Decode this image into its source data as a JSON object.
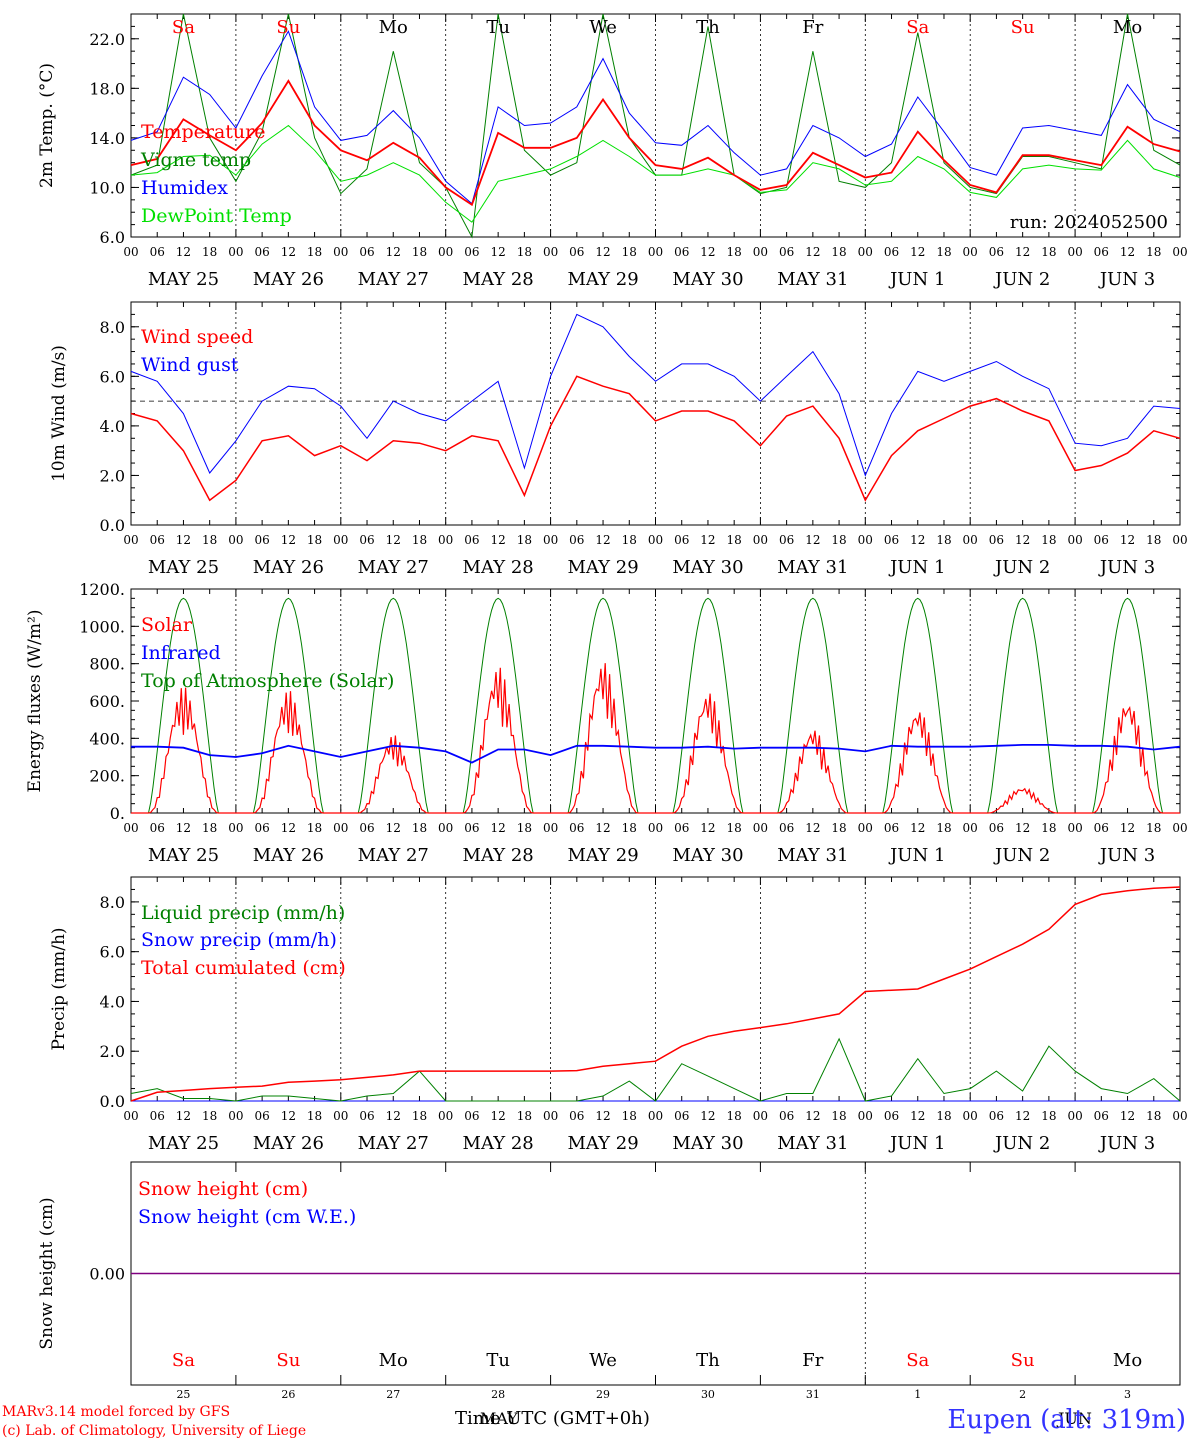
{
  "colors": {
    "red": "#ff0000",
    "blue": "#0000ff",
    "green": "#008000",
    "lightgreen": "#00e000",
    "black": "#000000",
    "purple": "#800080",
    "title_blue": "#3333ff"
  },
  "x_ticks": [
    "00",
    "06",
    "12",
    "18",
    "00",
    "06",
    "12",
    "18",
    "00",
    "06",
    "12",
    "18",
    "00",
    "06",
    "12",
    "18",
    "00",
    "06",
    "12",
    "18",
    "00",
    "06",
    "12",
    "18",
    "00",
    "06",
    "12",
    "18",
    "00",
    "06",
    "12",
    "18",
    "00",
    "06",
    "12",
    "18",
    "00",
    "06",
    "12",
    "18",
    "00"
  ],
  "date_labels": [
    "MAY 25",
    "MAY 26",
    "MAY 27",
    "MAY 28",
    "MAY 29",
    "MAY 30",
    "MAY 31",
    "JUN  1",
    "JUN  2",
    "JUN  3"
  ],
  "weekdays": [
    "Sa",
    "Su",
    "Mo",
    "Tu",
    "We",
    "Th",
    "Fr",
    "Sa",
    "Su",
    "Mo"
  ],
  "weekday_colors": [
    "red",
    "red",
    "black",
    "black",
    "black",
    "black",
    "black",
    "red",
    "red",
    "black"
  ],
  "day_numbers": [
    "25",
    "26",
    "27",
    "28",
    "29",
    "30",
    "31",
    "1",
    "2",
    "3"
  ],
  "bottom_axis_label": "Time UTC (GMT+0h)",
  "bottom_month_may": "MAY",
  "bottom_month_jun": "JUN",
  "footer": {
    "line1": "MARv3.14 model forced by GFS",
    "line2": "(c) Lab. of Climatology, University of Liege",
    "station": "Eupen (alt: 319m)"
  },
  "chart_data": [
    {
      "type": "line",
      "ylabel": "2m Temp. (°C)",
      "ylim": [
        6,
        24
      ],
      "ytick_labels": [
        "6.0",
        "10.0",
        "14.0",
        "18.0",
        "22.0"
      ],
      "run_label": "run: 2024052500",
      "x_unit": "days since MAY 25 00UTC",
      "series": [
        {
          "name": "Temperature",
          "color": "red",
          "x": [
            0,
            0.25,
            0.5,
            0.75,
            1,
            1.25,
            1.5,
            1.75,
            2,
            2.25,
            2.5,
            2.75,
            3,
            3.25,
            3.5,
            3.75,
            4,
            4.25,
            4.5,
            4.75,
            5,
            5.25,
            5.5,
            5.75,
            6,
            6.25,
            6.5,
            6.75,
            7,
            7.25,
            7.5,
            7.75,
            8,
            8.25,
            8.5,
            8.75,
            9,
            9.25,
            9.5,
            9.75,
            10
          ],
          "values": [
            11.8,
            12.3,
            15.5,
            14.2,
            13.0,
            15.2,
            18.6,
            15.0,
            13.0,
            12.2,
            13.6,
            12.4,
            10.0,
            8.6,
            14.4,
            13.2,
            13.2,
            14.0,
            17.1,
            14.0,
            11.8,
            11.5,
            12.4,
            11.0,
            9.8,
            10.2,
            12.8,
            11.8,
            10.8,
            11.2,
            14.5,
            12.2,
            10.2,
            9.6,
            12.6,
            12.6,
            12.2,
            11.8,
            14.9,
            13.5,
            12.9
          ]
        },
        {
          "name": "Vigne temp",
          "color": "green",
          "x": [
            0,
            0.25,
            0.5,
            0.75,
            1,
            1.25,
            1.5,
            1.75,
            2,
            2.25,
            2.5,
            2.75,
            3,
            3.25,
            3.5,
            3.75,
            4,
            4.25,
            4.5,
            4.75,
            5,
            5.25,
            5.5,
            5.75,
            6,
            6.25,
            6.5,
            6.75,
            7,
            7.25,
            7.5,
            7.75,
            8,
            8.25,
            8.5,
            8.75,
            9,
            9.25,
            9.5,
            9.75,
            10
          ],
          "values": [
            11.0,
            11.8,
            24.0,
            14.0,
            10.5,
            14.5,
            24.0,
            14.0,
            9.5,
            11.5,
            21.0,
            12.0,
            10.0,
            6.0,
            24.0,
            13.0,
            11.0,
            12.0,
            24.0,
            14.0,
            11.0,
            11.0,
            23.0,
            11.0,
            9.5,
            10.0,
            21.0,
            10.5,
            10.0,
            12.0,
            22.5,
            12.0,
            10.0,
            9.5,
            12.5,
            12.5,
            12.0,
            11.5,
            24.0,
            13.0,
            11.8
          ]
        },
        {
          "name": "Humidex",
          "color": "blue",
          "x": [
            0,
            0.25,
            0.5,
            0.75,
            1,
            1.25,
            1.5,
            1.75,
            2,
            2.25,
            2.5,
            2.75,
            3,
            3.25,
            3.5,
            3.75,
            4,
            4.25,
            4.5,
            4.75,
            5,
            5.25,
            5.5,
            5.75,
            6,
            6.25,
            6.5,
            6.75,
            7,
            7.25,
            7.5,
            7.75,
            8,
            8.25,
            8.5,
            8.75,
            9,
            9.25,
            9.5,
            9.75,
            10
          ],
          "values": [
            13.8,
            14.5,
            18.9,
            17.5,
            14.8,
            19.0,
            22.6,
            16.5,
            13.8,
            14.2,
            16.2,
            14.0,
            10.5,
            8.7,
            16.5,
            15.0,
            15.2,
            16.5,
            20.4,
            16.0,
            13.6,
            13.4,
            15.0,
            12.8,
            11.0,
            11.5,
            15.0,
            14.0,
            12.5,
            13.5,
            17.3,
            14.5,
            11.6,
            11.0,
            14.8,
            15.0,
            14.6,
            14.2,
            18.3,
            15.5,
            14.5
          ]
        },
        {
          "name": "DewPoint Temp",
          "color": "lightgreen",
          "x": [
            0,
            0.25,
            0.5,
            0.75,
            1,
            1.25,
            1.5,
            1.75,
            2,
            2.25,
            2.5,
            2.75,
            3,
            3.25,
            3.5,
            3.75,
            4,
            4.25,
            4.5,
            4.75,
            5,
            5.25,
            5.5,
            5.75,
            6,
            6.25,
            6.5,
            6.75,
            7,
            7.25,
            7.5,
            7.75,
            8,
            8.25,
            8.5,
            8.75,
            9,
            9.25,
            9.5,
            9.75,
            10
          ],
          "values": [
            11.0,
            11.2,
            12.5,
            12.6,
            11.0,
            13.5,
            15.0,
            13.0,
            10.5,
            11.0,
            12.0,
            11.0,
            8.8,
            7.2,
            10.5,
            11.0,
            11.5,
            12.5,
            13.8,
            12.5,
            11.0,
            11.0,
            11.5,
            11.0,
            9.6,
            9.8,
            12.0,
            11.5,
            10.2,
            10.5,
            12.5,
            11.5,
            9.6,
            9.2,
            11.5,
            11.8,
            11.5,
            11.4,
            13.8,
            11.5,
            10.8
          ]
        }
      ]
    },
    {
      "type": "line",
      "ylabel": "10m Wind (m/s)",
      "ylim": [
        0,
        9
      ],
      "ytick_labels": [
        "0.0",
        "2.0",
        "4.0",
        "6.0",
        "8.0"
      ],
      "threshold": 5.0,
      "series": [
        {
          "name": "Wind speed",
          "color": "red",
          "x": [
            0,
            0.25,
            0.5,
            0.75,
            1,
            1.25,
            1.5,
            1.75,
            2,
            2.25,
            2.5,
            2.75,
            3,
            3.25,
            3.5,
            3.75,
            4,
            4.25,
            4.5,
            4.75,
            5,
            5.25,
            5.5,
            5.75,
            6,
            6.25,
            6.5,
            6.75,
            7,
            7.25,
            7.5,
            7.75,
            8,
            8.25,
            8.5,
            8.75,
            9,
            9.25,
            9.5,
            9.75,
            10
          ],
          "values": [
            4.5,
            4.2,
            3.0,
            1.0,
            1.8,
            3.4,
            3.6,
            2.8,
            3.2,
            2.6,
            3.4,
            3.3,
            3.0,
            3.6,
            3.4,
            1.2,
            4.0,
            6.0,
            5.6,
            5.3,
            4.2,
            4.6,
            4.6,
            4.2,
            3.2,
            4.4,
            4.8,
            3.5,
            1.0,
            2.8,
            3.8,
            4.3,
            4.8,
            5.1,
            4.6,
            4.2,
            2.2,
            2.4,
            2.9,
            3.8,
            3.5
          ]
        },
        {
          "name": "Wind gust",
          "color": "blue",
          "x": [
            0,
            0.25,
            0.5,
            0.75,
            1,
            1.25,
            1.5,
            1.75,
            2,
            2.25,
            2.5,
            2.75,
            3,
            3.25,
            3.5,
            3.75,
            4,
            4.25,
            4.5,
            4.75,
            5,
            5.25,
            5.5,
            5.75,
            6,
            6.25,
            6.5,
            6.75,
            7,
            7.25,
            7.5,
            7.75,
            8,
            8.25,
            8.5,
            8.75,
            9,
            9.25,
            9.5,
            9.75,
            10
          ],
          "values": [
            6.2,
            5.8,
            4.5,
            2.1,
            3.4,
            5.0,
            5.6,
            5.5,
            4.8,
            3.5,
            5.0,
            4.5,
            4.2,
            5.0,
            5.8,
            2.3,
            6.0,
            8.5,
            8.0,
            6.8,
            5.8,
            6.5,
            6.5,
            6.0,
            5.0,
            6.0,
            7.0,
            5.3,
            2.0,
            4.5,
            6.2,
            5.8,
            6.2,
            6.6,
            6.0,
            5.5,
            3.3,
            3.2,
            3.5,
            4.8,
            4.7
          ]
        }
      ]
    },
    {
      "type": "line",
      "ylabel": "Energy fluxes (W/m²)",
      "ylim": [
        0,
        1200
      ],
      "ytick_labels": [
        "0.",
        "200.",
        "400.",
        "600.",
        "800.",
        "1000.",
        "1200."
      ],
      "series": [
        {
          "name": "Solar",
          "color": "red",
          "daily_peaks": [
            680,
            660,
            420,
            790,
            820,
            660,
            460,
            570,
            140,
            620
          ]
        },
        {
          "name": "Infrared",
          "color": "blue",
          "x": [
            0,
            0.25,
            0.5,
            0.75,
            1,
            1.25,
            1.5,
            1.75,
            2,
            2.25,
            2.5,
            2.75,
            3,
            3.25,
            3.5,
            3.75,
            4,
            4.25,
            4.5,
            4.75,
            5,
            5.25,
            5.5,
            5.75,
            6,
            6.25,
            6.5,
            6.75,
            7,
            7.25,
            7.5,
            7.75,
            8,
            8.25,
            8.5,
            8.75,
            9,
            9.25,
            9.5,
            9.75,
            10
          ],
          "values": [
            355,
            355,
            350,
            310,
            300,
            320,
            360,
            330,
            300,
            330,
            360,
            350,
            330,
            270,
            340,
            340,
            310,
            360,
            360,
            355,
            350,
            350,
            355,
            345,
            350,
            350,
            350,
            345,
            330,
            360,
            355,
            355,
            355,
            360,
            365,
            365,
            360,
            360,
            355,
            340,
            355
          ]
        },
        {
          "name": "Top of Atmosphere (Solar)",
          "color": "green",
          "daily_peak": 1150
        }
      ]
    },
    {
      "type": "line",
      "ylabel": "Precip (mm/h)",
      "ylim": [
        0,
        9
      ],
      "ytick_labels": [
        "0.0",
        "2.0",
        "4.0",
        "6.0",
        "8.0"
      ],
      "series": [
        {
          "name": "Liquid precip (mm/h)",
          "color": "green",
          "x": [
            0,
            0.25,
            0.5,
            0.75,
            1,
            1.25,
            1.5,
            1.75,
            2,
            2.25,
            2.5,
            2.75,
            3,
            3.25,
            3.5,
            3.75,
            4,
            4.25,
            4.5,
            4.75,
            5,
            5.25,
            5.5,
            5.75,
            6,
            6.25,
            6.5,
            6.75,
            7,
            7.25,
            7.5,
            7.75,
            8,
            8.25,
            8.5,
            8.75,
            9,
            9.25,
            9.5,
            9.75,
            10
          ],
          "values": [
            0.3,
            0.5,
            0.1,
            0.1,
            0.0,
            0.2,
            0.2,
            0.1,
            0.0,
            0.2,
            0.3,
            1.2,
            0.0,
            0.0,
            0.0,
            0.0,
            0.0,
            0.0,
            0.2,
            0.8,
            0.0,
            1.5,
            1.0,
            0.5,
            0.0,
            0.3,
            0.3,
            2.5,
            0.0,
            0.2,
            1.7,
            0.3,
            0.5,
            1.2,
            0.4,
            2.2,
            1.2,
            0.5,
            0.3,
            0.9,
            0.0
          ]
        },
        {
          "name": "Snow precip (mm/h)",
          "color": "blue",
          "x": [
            0,
            10
          ],
          "values": [
            0,
            0
          ]
        },
        {
          "name": "Total cumulated (cm)",
          "color": "red",
          "x": [
            0,
            0.25,
            0.5,
            0.75,
            1,
            1.25,
            1.5,
            1.75,
            2,
            2.25,
            2.5,
            2.75,
            3,
            3.25,
            3.5,
            3.75,
            4,
            4.25,
            4.5,
            4.75,
            5,
            5.25,
            5.5,
            5.75,
            6,
            6.25,
            6.5,
            6.75,
            7,
            7.25,
            7.5,
            7.75,
            8,
            8.25,
            8.5,
            8.75,
            9,
            9.25,
            9.5,
            9.75,
            10
          ],
          "values": [
            0.0,
            0.35,
            0.42,
            0.5,
            0.55,
            0.6,
            0.75,
            0.8,
            0.85,
            0.95,
            1.05,
            1.2,
            1.2,
            1.2,
            1.2,
            1.2,
            1.2,
            1.22,
            1.4,
            1.5,
            1.6,
            2.2,
            2.6,
            2.8,
            2.95,
            3.1,
            3.3,
            3.5,
            4.4,
            4.45,
            4.5,
            4.9,
            5.3,
            5.8,
            6.3,
            6.9,
            7.9,
            8.3,
            8.45,
            8.55,
            8.6
          ]
        }
      ]
    },
    {
      "type": "line",
      "ylabel": "Snow height (cm)",
      "ytick_labels": [
        "0.00"
      ],
      "series": [
        {
          "name": "Snow height (cm)",
          "color": "red",
          "x": [
            0,
            10
          ],
          "values": [
            0,
            0
          ]
        },
        {
          "name": "Snow height (cm W.E.)",
          "color": "blue",
          "x": [
            0,
            10
          ],
          "values": [
            0,
            0
          ]
        }
      ]
    }
  ]
}
